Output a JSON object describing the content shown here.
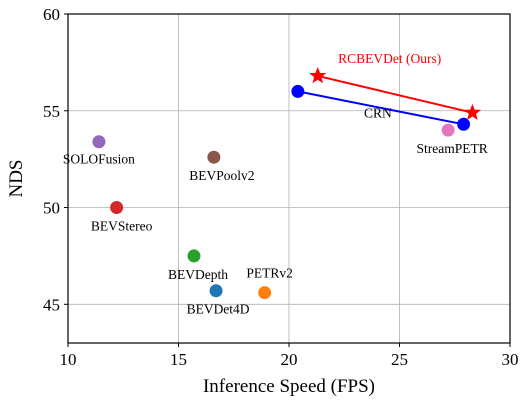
{
  "chart_data": {
    "type": "scatter",
    "xlabel": "Inference Speed (FPS)",
    "ylabel": "NDS",
    "xlim": [
      10,
      30
    ],
    "ylim": [
      43,
      60
    ],
    "xticks": [
      10,
      15,
      20,
      25,
      30
    ],
    "yticks": [
      45,
      50,
      55,
      60
    ],
    "grid": true,
    "points": [
      {
        "label": "SOLOFusion",
        "x": 11.4,
        "y": 53.4,
        "color": "#9467bd",
        "marker": "circle"
      },
      {
        "label": "BEVStereo",
        "x": 12.2,
        "y": 50.0,
        "color": "#d62728",
        "marker": "circle"
      },
      {
        "label": "BEVPoolv2",
        "x": 16.6,
        "y": 52.6,
        "color": "#8c564b",
        "marker": "circle"
      },
      {
        "label": "BEVDepth",
        "x": 15.7,
        "y": 47.5,
        "color": "#2ca02c",
        "marker": "circle"
      },
      {
        "label": "BEVDet4D",
        "x": 16.7,
        "y": 45.7,
        "color": "#1f77b4",
        "marker": "circle"
      },
      {
        "label": "PETRv2",
        "x": 18.9,
        "y": 45.6,
        "color": "#ff7f0e",
        "marker": "circle"
      },
      {
        "label": "StreamPETR",
        "x": 27.2,
        "y": 54.0,
        "color": "#e377c2",
        "marker": "circle"
      }
    ],
    "series": [
      {
        "name": "CRN",
        "x": [
          20.4,
          27.9
        ],
        "y": [
          56.0,
          54.3
        ],
        "color": "#0000ff",
        "marker": "circle"
      },
      {
        "name": "RCBEVDet (Ours)",
        "x": [
          21.3,
          28.3
        ],
        "y": [
          56.8,
          54.9
        ],
        "color": "#ff0000",
        "marker": "star"
      }
    ]
  }
}
